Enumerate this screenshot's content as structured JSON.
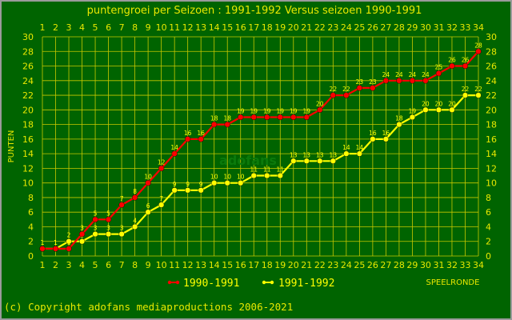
{
  "chart_data": {
    "type": "line",
    "title": "puntengroei per Seizoen : 1991-1992 Versus seizoen 1990-1991",
    "ylabel": "PUNTEN",
    "xlabel": "SPEELRONDE",
    "xlim": [
      1,
      34
    ],
    "ylim": [
      0,
      30
    ],
    "yticks": [
      0,
      2,
      4,
      6,
      8,
      10,
      12,
      14,
      16,
      18,
      20,
      22,
      24,
      26,
      28,
      30
    ],
    "grid": true,
    "legend_position": "bottom",
    "x": [
      1,
      2,
      3,
      4,
      5,
      6,
      7,
      8,
      9,
      10,
      11,
      12,
      13,
      14,
      15,
      16,
      17,
      18,
      19,
      20,
      21,
      22,
      23,
      24,
      25,
      26,
      27,
      28,
      29,
      30,
      31,
      32,
      33,
      34
    ],
    "series": [
      {
        "name": "1990-1991",
        "color": "#ff0000",
        "values": [
          1,
          1,
          1,
          3,
          5,
          5,
          7,
          8,
          10,
          12,
          14,
          16,
          16,
          18,
          18,
          19,
          19,
          19,
          19,
          19,
          19,
          20,
          22,
          22,
          23,
          23,
          24,
          24,
          24,
          24,
          25,
          26,
          26,
          28
        ]
      },
      {
        "name": "1991-1992",
        "color": "#ffff00",
        "values": [
          1,
          1,
          2,
          2,
          3,
          3,
          3,
          4,
          6,
          7,
          9,
          9,
          9,
          10,
          10,
          10,
          11,
          11,
          11,
          13,
          13,
          13,
          13,
          14,
          14,
          16,
          16,
          18,
          19,
          20,
          20,
          20,
          22,
          22
        ]
      }
    ]
  },
  "watermark": "adofans",
  "copyright": "(c) Copyright adofans mediaproductions 2006-2021"
}
